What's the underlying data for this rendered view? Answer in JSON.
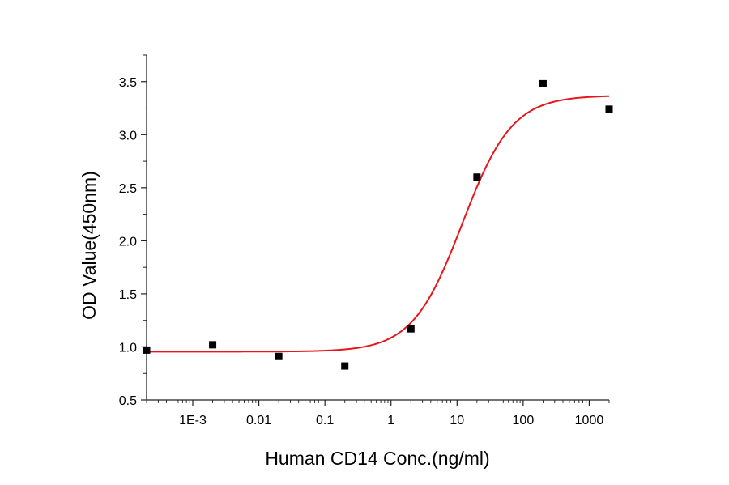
{
  "chart_data": {
    "type": "scatter",
    "title": "",
    "xlabel": "Human CD14 Conc.(ng/ml)",
    "ylabel": "OD Value(450nm)",
    "x_scale": "log",
    "xlim": [
      0.0002,
      2000
    ],
    "ylim": [
      0.5,
      3.75
    ],
    "x_ticks": [
      {
        "value": 0.001,
        "label": "1E-3"
      },
      {
        "value": 0.01,
        "label": "0.01"
      },
      {
        "value": 0.1,
        "label": "0.1"
      },
      {
        "value": 1,
        "label": "1"
      },
      {
        "value": 10,
        "label": "10"
      },
      {
        "value": 100,
        "label": "100"
      },
      {
        "value": 1000,
        "label": "1000"
      }
    ],
    "y_ticks": [
      {
        "value": 0.5,
        "label": "0.5"
      },
      {
        "value": 1.0,
        "label": "1.0"
      },
      {
        "value": 1.5,
        "label": "1.5"
      },
      {
        "value": 2.0,
        "label": "2.0"
      },
      {
        "value": 2.5,
        "label": "2.5"
      },
      {
        "value": 3.0,
        "label": "3.0"
      },
      {
        "value": 3.5,
        "label": "3.5"
      }
    ],
    "grid": false,
    "points": {
      "x": [
        0.0002,
        0.002,
        0.02,
        0.2,
        2,
        20,
        200,
        2000
      ],
      "y": [
        0.97,
        1.02,
        0.91,
        0.82,
        1.17,
        2.6,
        3.48,
        3.24
      ],
      "marker": "square",
      "color": "#000000"
    },
    "fit_curve": {
      "kind": "4PL",
      "bottom": 0.955,
      "top": 3.37,
      "ec50": 12,
      "hill": 1.15,
      "color": "#e8161b"
    }
  }
}
